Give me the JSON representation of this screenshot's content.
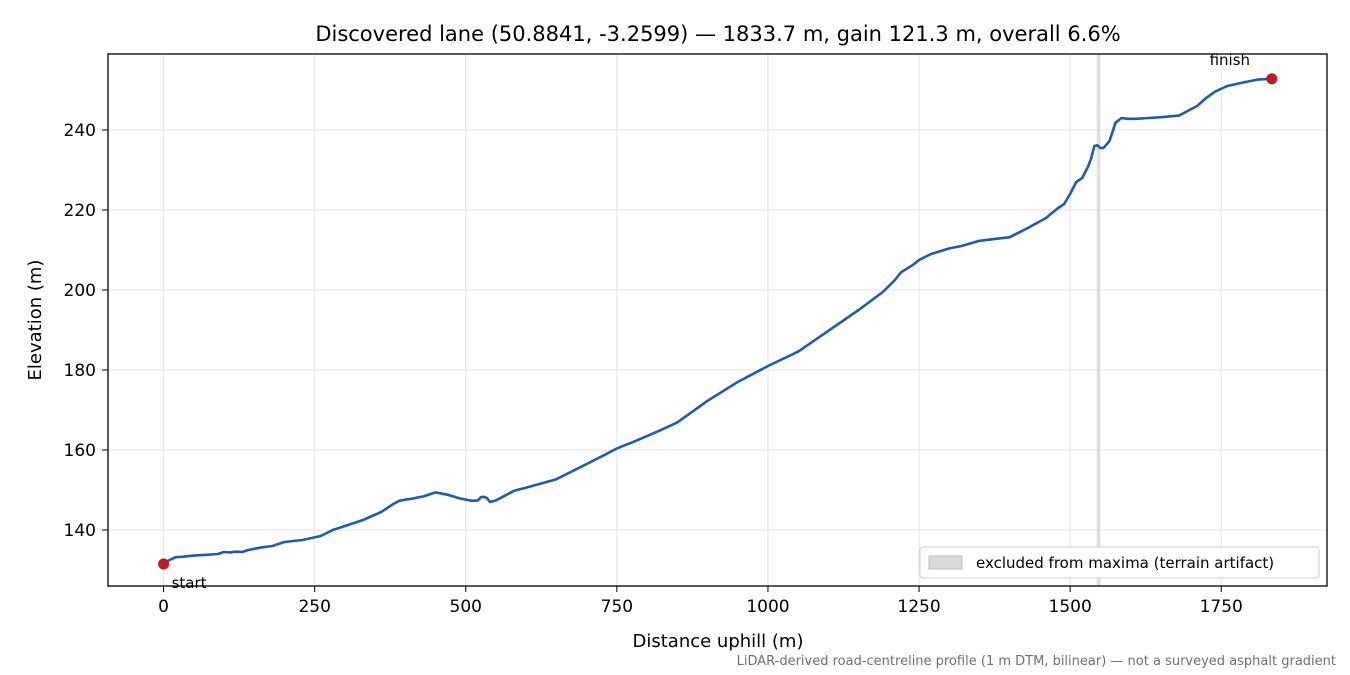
{
  "chart_data": {
    "type": "line",
    "title": "Discovered lane (50.8841, -3.2599) — 1833.7 m, gain 121.3 m, overall 6.6%",
    "xlabel": "Distance uphill (m)",
    "ylabel": "Elevation (m)",
    "xlim": [
      -92,
      1925
    ],
    "ylim": [
      126,
      259
    ],
    "xticks": [
      0,
      250,
      500,
      750,
      1000,
      1250,
      1500,
      1750
    ],
    "yticks": [
      140,
      160,
      180,
      200,
      220,
      240
    ],
    "grid": true,
    "footnote": "LiDAR-derived road-centreline profile (1 m DTM, bilinear) — not a surveyed asphalt gradient",
    "series": [
      {
        "color": "#1f5bb0",
        "x": [
          0,
          10,
          20,
          30,
          50,
          70,
          90,
          100,
          110,
          120,
          130,
          140,
          150,
          160,
          180,
          200,
          230,
          260,
          280,
          300,
          330,
          360,
          380,
          390,
          400,
          410,
          430,
          450,
          470,
          490,
          510,
          520,
          525,
          530,
          535,
          540,
          550,
          560,
          580,
          600,
          650,
          700,
          730,
          750,
          780,
          820,
          850,
          900,
          950,
          1000,
          1050,
          1100,
          1150,
          1190,
          1210,
          1220,
          1240,
          1250,
          1270,
          1300,
          1320,
          1350,
          1400,
          1430,
          1460,
          1480,
          1490,
          1500,
          1510,
          1520,
          1530,
          1535,
          1540,
          1545,
          1550,
          1555,
          1565,
          1575,
          1585,
          1595,
          1610,
          1650,
          1680,
          1710,
          1725,
          1740,
          1760,
          1790,
          1810,
          1833.7
        ],
        "y": [
          131.5,
          132.5,
          133.2,
          133.3,
          133.6,
          133.8,
          134.0,
          134.5,
          134.4,
          134.6,
          134.5,
          135.0,
          135.3,
          135.6,
          136.0,
          137.0,
          137.5,
          138.5,
          140.0,
          141.0,
          142.5,
          144.5,
          146.5,
          147.3,
          147.6,
          147.8,
          148.4,
          149.4,
          148.8,
          147.9,
          147.3,
          147.4,
          148.2,
          148.3,
          148.0,
          147.0,
          147.4,
          148.2,
          149.8,
          150.6,
          152.7,
          156.5,
          158.8,
          160.4,
          162.2,
          164.8,
          166.9,
          172.3,
          177.0,
          181.0,
          184.6,
          189.8,
          195.0,
          199.5,
          202.5,
          204.4,
          206.3,
          207.5,
          209.0,
          210.4,
          211.0,
          212.3,
          213.2,
          215.5,
          218.0,
          220.5,
          221.5,
          224.0,
          227.0,
          228.0,
          231.0,
          233.0,
          236.0,
          236.2,
          235.5,
          235.5,
          237.2,
          241.8,
          243.0,
          242.8,
          242.8,
          243.2,
          243.6,
          246.0,
          248.0,
          249.6,
          251.0,
          252.0,
          252.6,
          252.8
        ]
      }
    ],
    "markers": [
      {
        "label": "start",
        "x": 0,
        "y": 131.5,
        "color": "#c01a22"
      },
      {
        "label": "finish",
        "x": 1833.7,
        "y": 252.8,
        "color": "#c01a22"
      }
    ],
    "excluded_band": {
      "x0": 1544,
      "x1": 1550,
      "legend": "excluded from maxima (terrain artifact)"
    },
    "legend_position": "lower-right"
  }
}
